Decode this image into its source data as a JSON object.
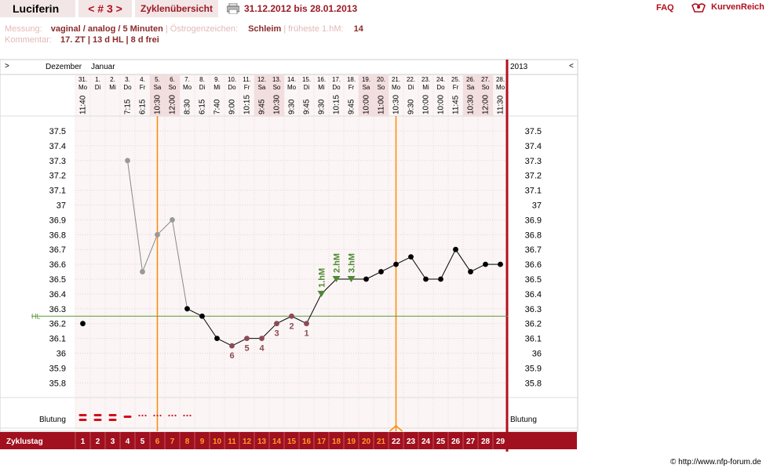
{
  "header": {
    "user_name": "Luciferin",
    "cycle_nav": "< # 3 >",
    "overview_link": "Zyklenübersicht",
    "print_icon": "printer-icon",
    "date_range": "31.12.2012 bis 28.01.2013",
    "faq": "FAQ",
    "brand_name": "KurvenReich",
    "brand_icon": "hand-logo-icon"
  },
  "info": {
    "measurement_label": "Messung:",
    "measurement_value": "vaginal / analog / 5 Minuten",
    "estrogen_label": "Östrogenzeichen:",
    "estrogen_value": "Schleim",
    "earliest_label": "früheste 1.hM:",
    "earliest_value": "14",
    "comment_label": "Kommentar:",
    "comment_value": "17. ZT | 13 d HL | 8 d frei"
  },
  "calendar": {
    "nav_left": ">",
    "nav_right": "<",
    "month1": "Dezember",
    "month2": "Januar",
    "year": "2013"
  },
  "rows": {
    "bleeding_label": "Blutung",
    "bleeding_label_right": "Blutung",
    "cycle_day_label": "Zyklustag"
  },
  "footer": "© http://www.nfp-forum.de",
  "colors": {
    "accent": "#b20f1e",
    "coverline": "#5c9a3a",
    "temp_line": "#000000",
    "early_line": "#888888",
    "marker_line": "#ff8a00",
    "weekend_shade": "#f2dede",
    "chart_bg": "#fbf5f5"
  },
  "chart_data": {
    "type": "line",
    "days": [
      {
        "date": "31.",
        "wd": "Mo",
        "time": "11:40",
        "cd": 1,
        "temp": 36.2,
        "bleed": "heavy"
      },
      {
        "date": "1.",
        "wd": "Di",
        "time": "",
        "cd": 2,
        "temp": null,
        "bleed": "heavy"
      },
      {
        "date": "2.",
        "wd": "Mi",
        "time": "",
        "cd": 3,
        "temp": null,
        "bleed": "medium"
      },
      {
        "date": "3.",
        "wd": "Do",
        "time": "7:15",
        "cd": 4,
        "temp": 37.3,
        "bleed": "light"
      },
      {
        "date": "4.",
        "wd": "Fr",
        "time": "6:15",
        "cd": 5,
        "temp": 36.55,
        "bleed": "spotting"
      },
      {
        "date": "5.",
        "wd": "Sa",
        "time": "10:30",
        "cd": 6,
        "temp": 36.8,
        "bleed": "spotting"
      },
      {
        "date": "6.",
        "wd": "So",
        "time": "12:00",
        "cd": 7,
        "temp": 36.9,
        "bleed": "spotting"
      },
      {
        "date": "7.",
        "wd": "Mo",
        "time": "8:30",
        "cd": 8,
        "temp": 36.3,
        "bleed": "spotting"
      },
      {
        "date": "8.",
        "wd": "Di",
        "time": "6:15",
        "cd": 9,
        "temp": 36.25,
        "bleed": ""
      },
      {
        "date": "9.",
        "wd": "Mi",
        "time": "7:40",
        "cd": 10,
        "temp": 36.1,
        "bleed": ""
      },
      {
        "date": "10.",
        "wd": "Do",
        "time": "9:00",
        "cd": 11,
        "temp": 36.05,
        "bleed": ""
      },
      {
        "date": "11.",
        "wd": "Fr",
        "time": "10:15",
        "cd": 12,
        "temp": 36.1,
        "bleed": ""
      },
      {
        "date": "12.",
        "wd": "Sa",
        "time": "9:45",
        "cd": 13,
        "temp": 36.1,
        "bleed": ""
      },
      {
        "date": "13.",
        "wd": "So",
        "time": "10:30",
        "cd": 14,
        "temp": 36.2,
        "bleed": ""
      },
      {
        "date": "14.",
        "wd": "Mo",
        "time": "9:30",
        "cd": 15,
        "temp": 36.25,
        "bleed": ""
      },
      {
        "date": "15.",
        "wd": "Di",
        "time": "9:45",
        "cd": 16,
        "temp": 36.2,
        "bleed": ""
      },
      {
        "date": "16.",
        "wd": "Mi",
        "time": "9:30",
        "cd": 17,
        "temp": 36.4,
        "bleed": ""
      },
      {
        "date": "17.",
        "wd": "Do",
        "time": "10:15",
        "cd": 18,
        "temp": 36.5,
        "bleed": ""
      },
      {
        "date": "18.",
        "wd": "Fr",
        "time": "9:45",
        "cd": 19,
        "temp": 36.5,
        "bleed": ""
      },
      {
        "date": "19.",
        "wd": "Sa",
        "time": "10:00",
        "cd": 20,
        "temp": 36.5,
        "bleed": ""
      },
      {
        "date": "20.",
        "wd": "So",
        "time": "11:00",
        "cd": 21,
        "temp": 36.55,
        "bleed": ""
      },
      {
        "date": "21.",
        "wd": "Mo",
        "time": "10:30",
        "cd": 22,
        "temp": 36.6,
        "bleed": ""
      },
      {
        "date": "22.",
        "wd": "Di",
        "time": "9:30",
        "cd": 23,
        "temp": 36.65,
        "bleed": ""
      },
      {
        "date": "23.",
        "wd": "Mi",
        "time": "10:00",
        "cd": 24,
        "temp": 36.5,
        "bleed": ""
      },
      {
        "date": "24.",
        "wd": "Do",
        "time": "10:00",
        "cd": 25,
        "temp": 36.5,
        "bleed": ""
      },
      {
        "date": "25.",
        "wd": "Fr",
        "time": "11:45",
        "cd": 26,
        "temp": 36.7,
        "bleed": ""
      },
      {
        "date": "26.",
        "wd": "Sa",
        "time": "10:30",
        "cd": 27,
        "temp": 36.55,
        "bleed": ""
      },
      {
        "date": "27.",
        "wd": "So",
        "time": "12:00",
        "cd": 28,
        "temp": 36.6,
        "bleed": ""
      },
      {
        "date": "28.",
        "wd": "Mo",
        "time": "11:30",
        "cd": 29,
        "temp": 36.6,
        "bleed": ""
      }
    ],
    "weekend_days": [
      6,
      7,
      13,
      14,
      20,
      21,
      27,
      28
    ],
    "highlight_cd": [
      6,
      7,
      8,
      9,
      10,
      11,
      12,
      13,
      14,
      15,
      16,
      17,
      18,
      19,
      20,
      21
    ],
    "y_ticks": [
      "37.5",
      "37.4",
      "37.3",
      "37.2",
      "37.1",
      "37",
      "36.9",
      "36.8",
      "36.7",
      "36.6",
      "36.5",
      "36.4",
      "36.3",
      "36.2",
      "36.1",
      "36",
      "35.9",
      "35.8"
    ],
    "ylim": [
      35.8,
      37.5
    ],
    "coverline": 36.25,
    "coverline_label": "HL",
    "grey_segment_end_cd": 8,
    "disconnected_cd": [
      1
    ],
    "low_labels": [
      {
        "cd": 11,
        "text": "6"
      },
      {
        "cd": 12,
        "text": "5"
      },
      {
        "cd": 13,
        "text": "4"
      },
      {
        "cd": 14,
        "text": "3"
      },
      {
        "cd": 15,
        "text": "2"
      },
      {
        "cd": 16,
        "text": "1"
      }
    ],
    "high_labels": [
      {
        "cd": 17,
        "text": "1.hM"
      },
      {
        "cd": 18,
        "text": "2.hM"
      },
      {
        "cd": 19,
        "text": "3.hM"
      }
    ],
    "marker_lines_cd": [
      5.5,
      21.5
    ]
  }
}
